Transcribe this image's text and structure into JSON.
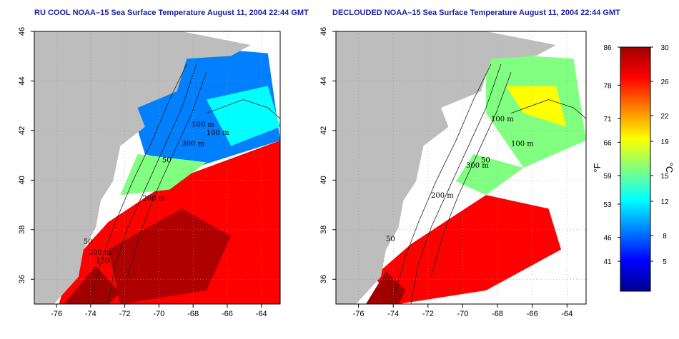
{
  "maps": [
    {
      "title": "RU COOL NOAA–15 Sea Surface Temperature August 11, 2004 22:44 GMT",
      "contour_labels": [
        "100 m",
        "200 m",
        "50",
        "300 m",
        "100 m",
        "200 m",
        "150",
        "50"
      ]
    },
    {
      "title": "DECLOUDED NOAA–15 Sea Surface Temperature August 11, 2004 22:44 GMT",
      "contour_labels": [
        "100 m",
        "100 m",
        "200 m",
        "50",
        "300 m",
        "50"
      ]
    }
  ],
  "axes": {
    "lon_ticks": [
      "-76",
      "-74",
      "-72",
      "-70",
      "-68",
      "-66",
      "-64"
    ],
    "lat_ticks": [
      "36",
      "38",
      "40",
      "42",
      "44",
      "46"
    ],
    "lon_values": [
      -76,
      -74,
      -72,
      -70,
      -68,
      -66,
      -64
    ],
    "lat_values": [
      36,
      38,
      40,
      42,
      44,
      46
    ],
    "lon_range": [
      -77.3,
      -62.9
    ],
    "lat_range": [
      35.0,
      46.0
    ]
  },
  "colorbar": {
    "fahrenheit_labels": [
      "86",
      "78",
      "71",
      "66",
      "59",
      "53",
      "46",
      "41"
    ],
    "celsius_labels": [
      "30",
      "26",
      "22",
      "19",
      "15",
      "12",
      "8",
      "5"
    ],
    "celsius_values": [
      30,
      26,
      22,
      19,
      15,
      12,
      8,
      5
    ],
    "fahrenheit_values": [
      86,
      78,
      71,
      66,
      59,
      53,
      46,
      41
    ],
    "range_c": [
      1.5,
      30
    ],
    "unit_f": "°F",
    "unit_c": "°C"
  },
  "colors": {
    "land": "#bdbdbd",
    "title": "#1a1aa6",
    "gradient": [
      "#00008f",
      "#0000ff",
      "#0080ff",
      "#00ffff",
      "#80ff80",
      "#ffff00",
      "#ff8000",
      "#ff0000",
      "#a00000"
    ]
  }
}
